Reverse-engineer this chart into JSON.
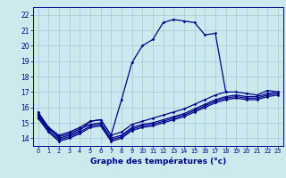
{
  "title": "Graphe des températures (°c)",
  "bg_color": "#cce9ed",
  "grid_color": "#aacdd4",
  "line_color": "#00008b",
  "ylim": [
    13.5,
    22.5
  ],
  "xlim": [
    -0.5,
    23.5
  ],
  "yticks": [
    14,
    15,
    16,
    17,
    18,
    19,
    20,
    21,
    22
  ],
  "xticks": [
    0,
    1,
    2,
    3,
    4,
    5,
    6,
    7,
    8,
    9,
    10,
    11,
    12,
    13,
    14,
    15,
    16,
    17,
    18,
    19,
    20,
    21,
    22,
    23
  ],
  "hours": [
    0,
    1,
    2,
    3,
    4,
    5,
    6,
    7,
    8,
    9,
    10,
    11,
    12,
    13,
    14,
    15,
    16,
    17,
    18,
    19,
    20,
    21,
    22,
    23
  ],
  "line_peak": [
    15.7,
    14.7,
    14.0,
    14.2,
    14.5,
    15.1,
    15.2,
    14.2,
    16.5,
    18.9,
    20.0,
    20.4,
    21.5,
    21.7,
    21.6,
    21.5,
    20.7,
    20.8,
    17.0,
    null,
    null,
    null,
    null,
    null
  ],
  "line_a": [
    15.6,
    14.7,
    14.2,
    14.4,
    14.7,
    15.1,
    15.2,
    14.2,
    14.4,
    14.9,
    15.1,
    15.3,
    15.5,
    15.7,
    15.9,
    16.2,
    16.5,
    16.8,
    17.0,
    17.0,
    16.9,
    16.8,
    17.1,
    17.0
  ],
  "line_b": [
    15.5,
    14.6,
    14.1,
    14.3,
    14.6,
    14.9,
    15.0,
    14.0,
    14.2,
    14.7,
    14.9,
    15.0,
    15.2,
    15.4,
    15.6,
    15.9,
    16.2,
    16.5,
    16.7,
    16.8,
    16.7,
    16.7,
    16.9,
    17.0
  ],
  "line_c": [
    15.4,
    14.5,
    13.9,
    14.1,
    14.4,
    14.8,
    14.9,
    13.9,
    14.1,
    14.6,
    14.8,
    14.9,
    15.1,
    15.3,
    15.5,
    15.8,
    16.1,
    16.4,
    16.6,
    16.7,
    16.6,
    16.6,
    16.8,
    16.9
  ],
  "line_d": [
    15.3,
    14.4,
    13.8,
    14.0,
    14.3,
    14.7,
    14.8,
    13.8,
    14.0,
    14.5,
    14.7,
    14.8,
    15.0,
    15.2,
    15.4,
    15.7,
    16.0,
    16.3,
    16.5,
    16.6,
    16.5,
    16.5,
    16.7,
    16.8
  ]
}
